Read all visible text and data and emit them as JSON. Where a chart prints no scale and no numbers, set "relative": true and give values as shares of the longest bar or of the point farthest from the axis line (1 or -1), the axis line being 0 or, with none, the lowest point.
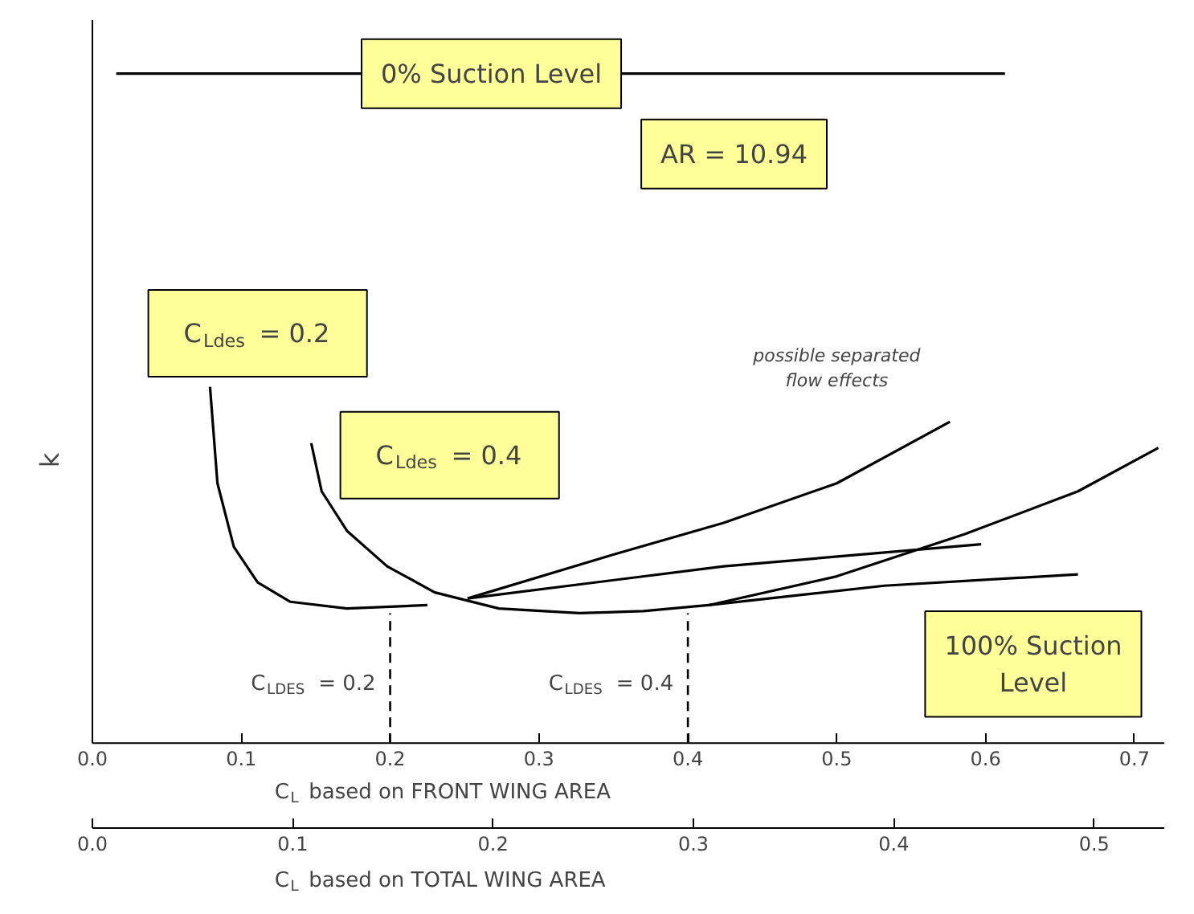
{
  "chart_data": {
    "type": "line",
    "relative": true,
    "xlabel": "C$_{L}$ based on FRONT WING AREA",
    "x2label": "C$_{L}$ based on TOTAL WING AREA",
    "ylabel": "k",
    "xlim": [
      0,
      0.72
    ],
    "xticks": [
      {
        "value": 0,
        "label": "0.0"
      },
      0.1,
      0.2,
      0.3,
      0.4,
      0.5,
      0.6,
      0.7
    ],
    "x2lim": [
      0,
      0.535
    ],
    "x2ticks": [
      {
        "value": 0,
        "label": "0.0"
      },
      0.1,
      0.2,
      0.3,
      0.4,
      0.5
    ],
    "grid": false,
    "series": [
      {
        "color": "#000000",
        "x": [
          0.016,
          0.613
        ],
        "values": [
          1.0,
          1.0
        ]
      },
      {
        "color": "#000000",
        "x": [
          0.079,
          0.084,
          0.095,
          0.111,
          0.133,
          0.171,
          0.225
        ],
        "values": [
          0.532,
          0.388,
          0.293,
          0.24,
          0.211,
          0.201,
          0.206
        ]
      },
      {
        "color": "#000000",
        "x": [
          0.147,
          0.154,
          0.171,
          0.198,
          0.23,
          0.273,
          0.327,
          0.37,
          0.414,
          0.532,
          0.662
        ],
        "values": [
          0.448,
          0.376,
          0.317,
          0.264,
          0.225,
          0.201,
          0.194,
          0.197,
          0.206,
          0.235,
          0.252
        ]
      },
      {
        "color": "#000000",
        "x": [
          0.252,
          0.424,
          0.597
        ],
        "values": [
          0.216,
          0.264,
          0.297
        ]
      },
      {
        "color": "#000000",
        "x": [
          0.252,
          0.349,
          0.424,
          0.5,
          0.576
        ],
        "values": [
          0.216,
          0.281,
          0.329,
          0.388,
          0.48
        ]
      },
      {
        "color": "#000000",
        "x": [
          0.414,
          0.5,
          0.586,
          0.662,
          0.716
        ],
        "values": [
          0.206,
          0.249,
          0.312,
          0.376,
          0.441
        ]
      }
    ],
    "ref_lines": [
      {
        "axis": "x",
        "value": 0.2,
        "label": "C$_{LDES}$ = 0.2",
        "color": "#000000",
        "line_style": "dashed"
      },
      {
        "axis": "x",
        "value": 0.4,
        "label": "C$_{LDES}$ = 0.4",
        "color": "#000000",
        "line_style": "dashed"
      }
    ],
    "annotations": [
      {
        "text": "0% Suction Level",
        "x": 0.268,
        "y": 1.0
      },
      "AR = 10.94",
      "C$_{Ldes}$ = 0.2",
      "C$_{Ldes}$ = 0.4",
      "100% Suction\nLevel",
      "possible separated\nflow effects"
    ]
  }
}
